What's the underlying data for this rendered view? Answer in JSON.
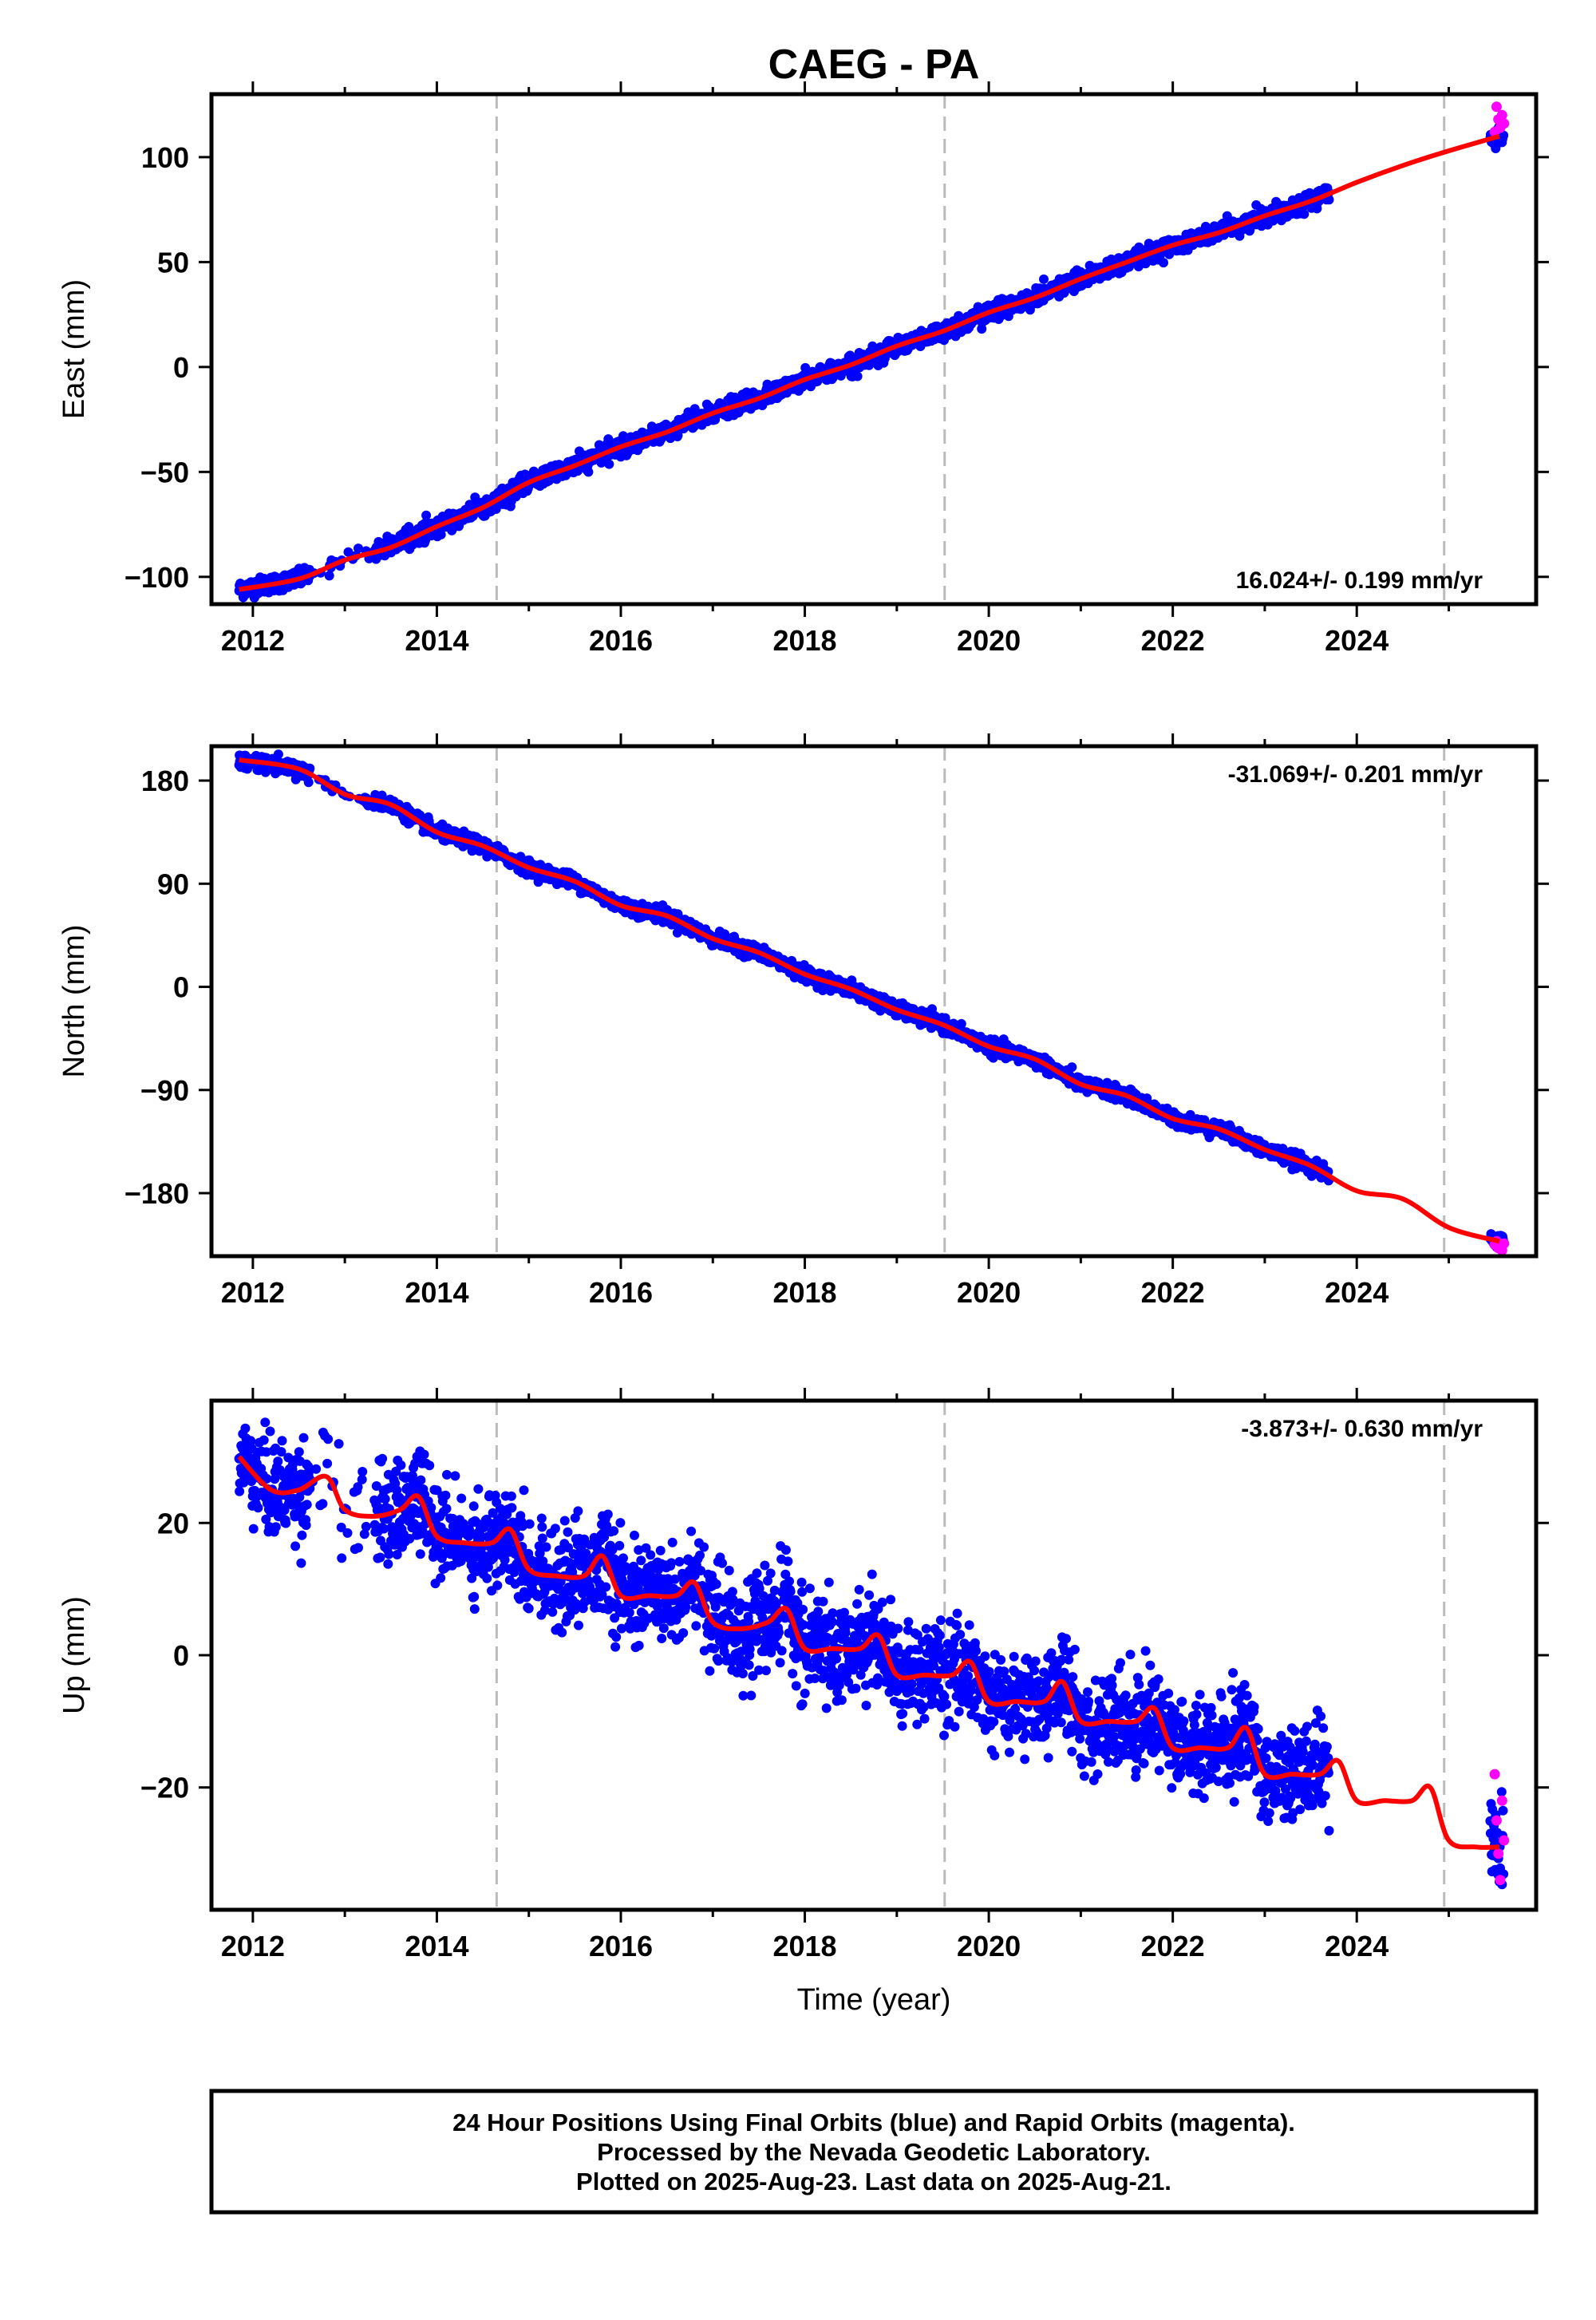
{
  "chart_data": {
    "title": "CAEG - PA",
    "type": "scatter",
    "x_axis": {
      "label": "Time (year)",
      "range": [
        2011.55,
        2025.95
      ],
      "ticks": [
        "2012",
        "2014",
        "2016",
        "2018",
        "2020",
        "2022",
        "2024"
      ],
      "tick_values": [
        2012,
        2014,
        2016,
        2018,
        2020,
        2022,
        2024
      ]
    },
    "equipment_change_lines": [
      2014.65,
      2019.52,
      2024.95
    ],
    "series_colors": {
      "final_orbits": "#0000ff",
      "rapid_orbits": "#ff00ff",
      "model_fit": "#ff0000",
      "vertical_lines": "#bbbbbb"
    },
    "panels": [
      {
        "name": "east",
        "ylabel": "East (mm)",
        "ylim": [
          -113,
          130
        ],
        "yticks": [
          100,
          50,
          0,
          -50,
          -100
        ],
        "ytick_labels": [
          "100",
          "50",
          "0",
          "−50",
          "−100"
        ],
        "rate": "16.024+/- 0.199 mm/yr",
        "rate_position": "bottom-right",
        "fit": {
          "x": [
            2011.85,
            2012.5,
            2013.0,
            2013.5,
            2014.0,
            2014.5,
            2015.0,
            2015.5,
            2016.0,
            2016.5,
            2017.0,
            2017.5,
            2018.0,
            2018.5,
            2019.0,
            2019.5,
            2020.0,
            2020.5,
            2021.0,
            2021.5,
            2022.0,
            2022.5,
            2023.0,
            2023.5,
            2024.0,
            2024.5,
            2025.0,
            2025.55
          ],
          "y": [
            -106,
            -101,
            -92,
            -86,
            -76,
            -67,
            -55,
            -47,
            -38,
            -31,
            -22,
            -15,
            -6,
            1,
            10,
            17,
            26,
            33,
            42,
            50,
            58,
            64,
            72,
            79,
            88,
            96,
            103,
            110
          ]
        },
        "data_end": 2023.7,
        "noise_mm": 2.0,
        "rapid_points": {
          "x": [
            2025.5,
            2025.52,
            2025.54,
            2025.56,
            2025.58,
            2025.6
          ],
          "y": [
            112,
            124,
            118,
            114,
            120,
            116
          ]
        }
      },
      {
        "name": "north",
        "ylabel": "North (mm)",
        "ylim": [
          -235,
          210
        ],
        "yticks": [
          180,
          90,
          0,
          -90,
          -180
        ],
        "ytick_labels": [
          "180",
          "90",
          "0",
          "−90",
          "−180"
        ],
        "rate": "-31.069+/- 0.201 mm/yr",
        "rate_position": "top-right",
        "fit": {
          "x": [
            2011.85,
            2012.5,
            2013.0,
            2013.5,
            2014.0,
            2014.5,
            2015.0,
            2015.5,
            2016.0,
            2016.5,
            2017.0,
            2017.5,
            2018.0,
            2018.5,
            2019.0,
            2019.5,
            2020.0,
            2020.5,
            2021.0,
            2021.5,
            2022.0,
            2022.5,
            2023.0,
            2023.5,
            2024.0,
            2024.5,
            2025.0,
            2025.55
          ],
          "y": [
            198,
            190,
            168,
            159,
            135,
            123,
            104,
            92,
            71,
            62,
            42,
            30,
            11,
            -2,
            -20,
            -33,
            -52,
            -63,
            -85,
            -95,
            -115,
            -124,
            -142,
            -156,
            -178,
            -185,
            -210,
            -222
          ]
        },
        "data_end": 2023.7,
        "noise_mm": 3.0,
        "rapid_points": {
          "x": [
            2025.5,
            2025.52,
            2025.54,
            2025.56,
            2025.58,
            2025.6
          ],
          "y": [
            -225,
            -222,
            -228,
            -226,
            -230,
            -224
          ]
        }
      },
      {
        "name": "up",
        "ylabel": "Up (mm)",
        "ylim": [
          -38.5,
          38.5
        ],
        "yticks": [
          20,
          0,
          -20
        ],
        "ytick_labels": [
          "20",
          "0",
          "−20"
        ],
        "rate": "-3.873+/- 0.630 mm/yr",
        "rate_position": "top-right",
        "fit": {
          "x": [
            2011.85,
            2012.2,
            2012.5,
            2012.8,
            2013.0,
            2013.3,
            2013.6,
            2013.8,
            2014.0,
            2014.3,
            2014.6,
            2014.8,
            2015.0,
            2015.3,
            2015.6,
            2015.8,
            2016.0,
            2016.3,
            2016.6,
            2016.8,
            2017.0,
            2017.3,
            2017.6,
            2017.8,
            2018.0,
            2018.3,
            2018.6,
            2018.8,
            2019.0,
            2019.3,
            2019.6,
            2019.8,
            2020.0,
            2020.3,
            2020.6,
            2020.8,
            2021.0,
            2021.3,
            2021.6,
            2021.8,
            2022.0,
            2022.3,
            2022.6,
            2022.8,
            2023.0,
            2023.3,
            2023.6,
            2023.8,
            2024.0,
            2024.3,
            2024.6,
            2024.8,
            2025.0,
            2025.3,
            2025.55
          ],
          "y": [
            30,
            25,
            25,
            27,
            22,
            21,
            22,
            24,
            18,
            17,
            17,
            19,
            13,
            12,
            12,
            15,
            9,
            9,
            9,
            11,
            5,
            4,
            5,
            7,
            1,
            1,
            1,
            3,
            -3,
            -3,
            -3,
            -1,
            -7,
            -7,
            -7,
            -4,
            -10,
            -10,
            -10,
            -8,
            -14,
            -14,
            -14,
            -11,
            -18,
            -18,
            -18,
            -16,
            -22,
            -22,
            -22,
            -20,
            -28,
            -29,
            -29
          ]
        },
        "data_end": 2023.7,
        "noise_mm": 3.6,
        "rapid_points": {
          "x": [
            2025.5,
            2025.52,
            2025.54,
            2025.56,
            2025.58,
            2025.6
          ],
          "y": [
            -18,
            -25,
            -30,
            -34,
            -22,
            -28
          ]
        }
      }
    ],
    "footer": [
      "24 Hour Positions Using Final Orbits (blue) and Rapid Orbits (magenta).",
      "Processed by the Nevada Geodetic Laboratory.",
      "Plotted on 2025-Aug-23. Last data on 2025-Aug-21."
    ]
  }
}
